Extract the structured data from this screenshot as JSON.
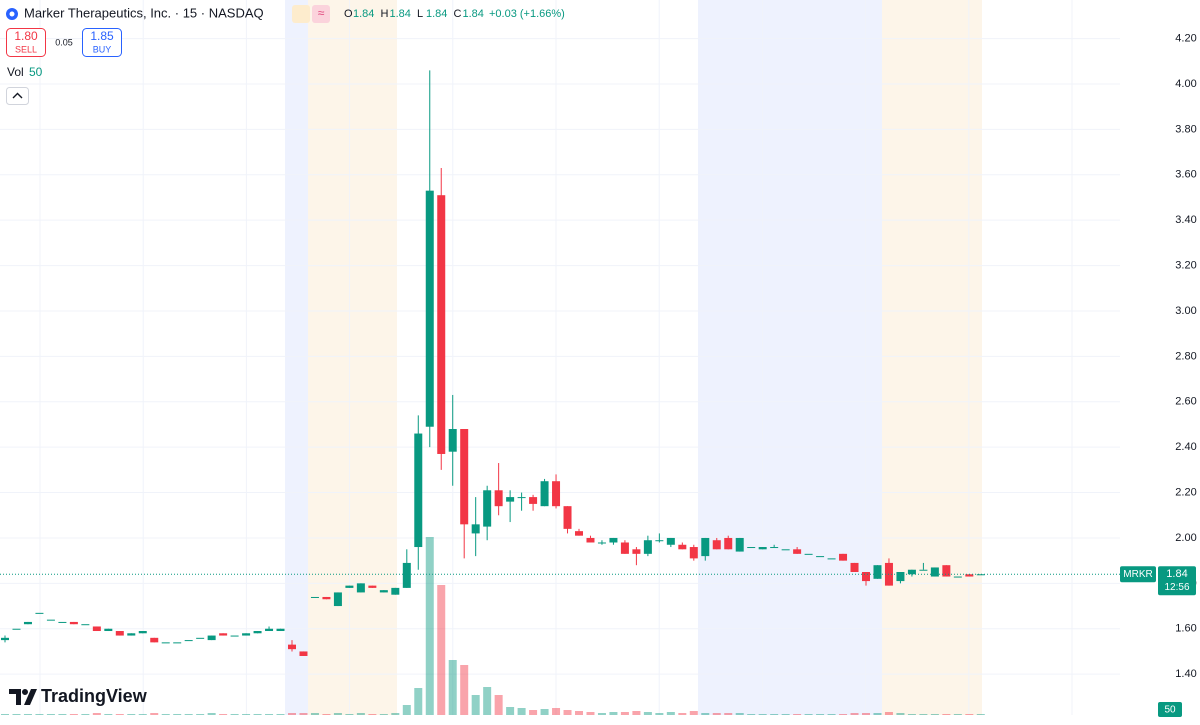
{
  "chart_data": {
    "type": "candlestick",
    "title": "Marker Therapeutics, Inc. · 15 · NASDAQ",
    "symbol": "MRKR",
    "ohlc_labels": [
      "O",
      "H",
      "L",
      "C"
    ],
    "change": "+0.03 (+1.66%)",
    "volume_label": "Vol",
    "open": [
      1.55,
      1.6,
      1.62,
      1.67,
      1.64,
      1.63,
      1.63,
      1.62,
      1.61,
      1.59,
      1.59,
      1.57,
      1.58,
      1.56,
      1.54,
      1.54,
      1.55,
      1.56,
      1.55,
      1.58,
      1.57,
      1.57,
      1.58,
      1.59,
      1.59,
      1.53,
      1.5,
      1.74,
      1.74,
      1.7,
      1.78,
      1.76,
      1.79,
      1.76,
      1.75,
      1.78,
      1.96,
      2.49,
      3.51,
      2.38,
      2.48,
      2.02,
      2.05,
      2.21,
      2.16,
      2.18,
      2.18,
      2.14,
      2.25,
      2.14,
      2.03,
      2.0,
      1.98,
      1.98,
      1.98,
      1.95,
      1.93,
      1.99,
      1.97,
      1.97,
      1.96,
      1.92,
      1.99,
      2.0,
      1.94,
      1.96,
      1.95,
      1.96,
      1.95,
      1.95,
      1.93,
      1.92,
      1.91,
      1.93,
      1.89,
      1.85,
      1.82,
      1.89,
      1.81,
      1.84,
      1.86,
      1.83,
      1.88,
      1.83,
      1.84,
      1.84
    ],
    "high": [
      1.57,
      1.6,
      1.63,
      1.67,
      1.64,
      1.63,
      1.63,
      1.62,
      1.61,
      1.6,
      1.59,
      1.58,
      1.59,
      1.56,
      1.54,
      1.54,
      1.55,
      1.56,
      1.57,
      1.58,
      1.57,
      1.58,
      1.59,
      1.61,
      1.6,
      1.55,
      1.5,
      1.74,
      1.74,
      1.76,
      1.79,
      1.8,
      1.79,
      1.77,
      1.78,
      1.95,
      2.54,
      4.06,
      3.63,
      2.63,
      2.48,
      2.18,
      2.23,
      2.33,
      2.21,
      2.2,
      2.19,
      2.26,
      2.28,
      2.14,
      2.04,
      2.01,
      1.99,
      2.0,
      1.99,
      1.96,
      2.01,
      2.02,
      2.0,
      1.98,
      1.97,
      2.0,
      2.0,
      2.01,
      2.0,
      1.96,
      1.96,
      1.97,
      1.95,
      1.96,
      1.93,
      1.92,
      1.91,
      1.93,
      1.89,
      1.85,
      1.88,
      1.91,
      1.85,
      1.86,
      1.89,
      1.87,
      1.88,
      1.83,
      1.84,
      1.84
    ],
    "low": [
      1.54,
      1.6,
      1.62,
      1.67,
      1.64,
      1.63,
      1.62,
      1.62,
      1.59,
      1.59,
      1.57,
      1.57,
      1.58,
      1.54,
      1.54,
      1.54,
      1.55,
      1.56,
      1.55,
      1.57,
      1.57,
      1.57,
      1.58,
      1.59,
      1.59,
      1.5,
      1.48,
      1.74,
      1.73,
      1.7,
      1.78,
      1.76,
      1.78,
      1.76,
      1.75,
      1.78,
      1.86,
      2.4,
      2.3,
      2.23,
      1.91,
      1.92,
      1.99,
      2.1,
      2.07,
      2.12,
      2.12,
      2.14,
      2.13,
      2.02,
      2.01,
      1.98,
      1.97,
      1.97,
      1.93,
      1.88,
      1.92,
      1.98,
      1.96,
      1.95,
      1.9,
      1.9,
      1.95,
      1.95,
      1.94,
      1.96,
      1.95,
      1.96,
      1.95,
      1.93,
      1.93,
      1.92,
      1.91,
      1.9,
      1.85,
      1.79,
      1.82,
      1.79,
      1.8,
      1.83,
      1.86,
      1.83,
      1.83,
      1.83,
      1.83,
      1.84
    ],
    "close": [
      1.56,
      1.6,
      1.63,
      1.67,
      1.64,
      1.63,
      1.62,
      1.62,
      1.59,
      1.6,
      1.57,
      1.58,
      1.59,
      1.54,
      1.54,
      1.54,
      1.55,
      1.56,
      1.57,
      1.57,
      1.57,
      1.58,
      1.59,
      1.6,
      1.6,
      1.51,
      1.48,
      1.74,
      1.73,
      1.76,
      1.79,
      1.8,
      1.78,
      1.77,
      1.78,
      1.89,
      2.46,
      3.53,
      2.37,
      2.48,
      2.06,
      2.06,
      2.21,
      2.14,
      2.18,
      2.18,
      2.15,
      2.25,
      2.14,
      2.04,
      2.01,
      1.98,
      1.98,
      2.0,
      1.93,
      1.93,
      1.99,
      1.99,
      2.0,
      1.95,
      1.91,
      2.0,
      1.95,
      1.95,
      2.0,
      1.96,
      1.96,
      1.96,
      1.95,
      1.93,
      1.93,
      1.92,
      1.91,
      1.9,
      1.85,
      1.81,
      1.88,
      1.79,
      1.85,
      1.86,
      1.86,
      1.87,
      1.83,
      1.83,
      1.83,
      1.84
    ],
    "volume": [
      50,
      50,
      50,
      50,
      50,
      50,
      50,
      50,
      100,
      50,
      50,
      50,
      50,
      100,
      50,
      50,
      50,
      50,
      100,
      50,
      50,
      50,
      50,
      50,
      50,
      100,
      100,
      100,
      50,
      100,
      50,
      100,
      50,
      50,
      100,
      500,
      1350,
      8900,
      6500,
      2750,
      2500,
      1000,
      1400,
      1000,
      400,
      350,
      250,
      300,
      350,
      250,
      200,
      150,
      100,
      150,
      150,
      200,
      150,
      100,
      150,
      100,
      200,
      100,
      100,
      100,
      100,
      50,
      50,
      50,
      50,
      50,
      50,
      50,
      50,
      50,
      100,
      100,
      100,
      150,
      100,
      50,
      50,
      50,
      50,
      50,
      50,
      50
    ],
    "ylim": [
      1.22,
      4.37
    ],
    "yticks": [
      {
        "value": 1.4,
        "label": "1.40"
      },
      {
        "value": 1.6,
        "label": "1.60"
      },
      {
        "value": 1.8,
        "label": "1.80"
      },
      {
        "value": 2,
        "label": "2.00"
      },
      {
        "value": 2.2,
        "label": "2.20"
      },
      {
        "value": 2.4,
        "label": "2.40"
      },
      {
        "value": 2.6,
        "label": "2.60"
      },
      {
        "value": 2.8,
        "label": "2.80"
      },
      {
        "value": 3,
        "label": "3.00"
      },
      {
        "value": 3.2,
        "label": "3.20"
      },
      {
        "value": 3.4,
        "label": "3.40"
      },
      {
        "value": 3.6,
        "label": "3.60"
      },
      {
        "value": 3.8,
        "label": "3.80"
      },
      {
        "value": 4,
        "label": "4.00"
      },
      {
        "value": 4.2,
        "label": "4.20"
      }
    ],
    "vlim": [
      0,
      10000
    ],
    "grid": true,
    "up_color": "#089981",
    "down_color": "#f23645",
    "last_price": 1.84,
    "countdown": "12:56"
  },
  "ui": {
    "sell_price": "1.80",
    "sell_label": "SELL",
    "spread": "0.05",
    "buy_price": "1.85",
    "buy_label": "BUY",
    "brand": "TradingView"
  }
}
